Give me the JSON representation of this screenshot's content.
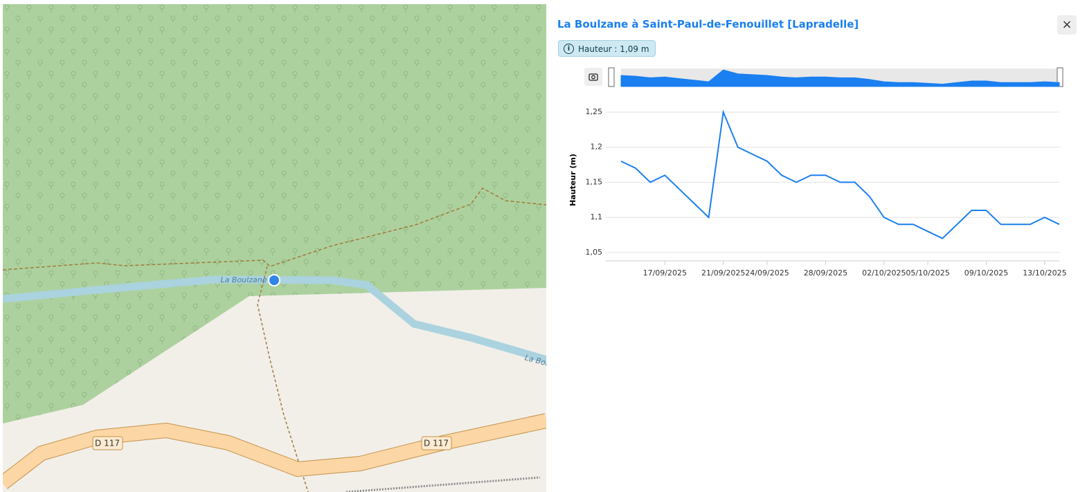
{
  "map": {
    "labels": [
      "La Boulzane",
      "La Bou",
      "D 117",
      "D 117"
    ]
  },
  "panel": {
    "title": "La Boulzane à Saint-Paul-de-Fenouillet [Lapradelle]",
    "badge": "Hauteur : 1,09 m",
    "close": "×"
  },
  "chart_data": {
    "type": "line",
    "y_label": "Hauteur (m)",
    "x": [
      "2025-09-14",
      "2025-09-15",
      "2025-09-16",
      "2025-09-17",
      "2025-09-18",
      "2025-09-19",
      "2025-09-20",
      "2025-09-21",
      "2025-09-22",
      "2025-09-23",
      "2025-09-24",
      "2025-09-25",
      "2025-09-26",
      "2025-09-27",
      "2025-09-28",
      "2025-09-29",
      "2025-09-30",
      "2025-10-01",
      "2025-10-02",
      "2025-10-03",
      "2025-10-04",
      "2025-10-05",
      "2025-10-06",
      "2025-10-07",
      "2025-10-08",
      "2025-10-09",
      "2025-10-10",
      "2025-10-11",
      "2025-10-12",
      "2025-10-13",
      "2025-10-14"
    ],
    "series": [
      {
        "name": "Hauteur",
        "color": "#1a7ff0",
        "values": [
          1.18,
          1.17,
          1.15,
          1.16,
          1.14,
          1.12,
          1.1,
          1.25,
          1.2,
          1.19,
          1.18,
          1.16,
          1.15,
          1.16,
          1.16,
          1.15,
          1.15,
          1.13,
          1.1,
          1.09,
          1.09,
          1.08,
          1.07,
          1.09,
          1.11,
          1.11,
          1.09,
          1.09,
          1.09,
          1.1,
          1.09
        ]
      }
    ],
    "xlim": [
      "2025-09-14",
      "2025-10-14"
    ],
    "xticks": [
      {
        "value": "2025-09-17",
        "label": "17/09/2025"
      },
      {
        "value": "2025-09-21",
        "label": "21/09/2025"
      },
      {
        "value": "2025-09-24",
        "label": "24/09/2025"
      },
      {
        "value": "2025-09-28",
        "label": "28/09/2025"
      },
      {
        "value": "2025-10-02",
        "label": "02/10/2025"
      },
      {
        "value": "2025-10-05",
        "label": "05/10/2025"
      },
      {
        "value": "2025-10-09",
        "label": "09/10/2025"
      },
      {
        "value": "2025-10-13",
        "label": "13/10/2025"
      }
    ],
    "ylim": [
      1.04,
      1.25
    ],
    "yticks": [
      {
        "value": 1.05,
        "label": "1,05"
      },
      {
        "value": 1.1,
        "label": "1,1"
      },
      {
        "value": 1.15,
        "label": "1,15"
      },
      {
        "value": 1.2,
        "label": "1,2"
      },
      {
        "value": 1.25,
        "label": "1,25"
      }
    ],
    "grid": true
  }
}
